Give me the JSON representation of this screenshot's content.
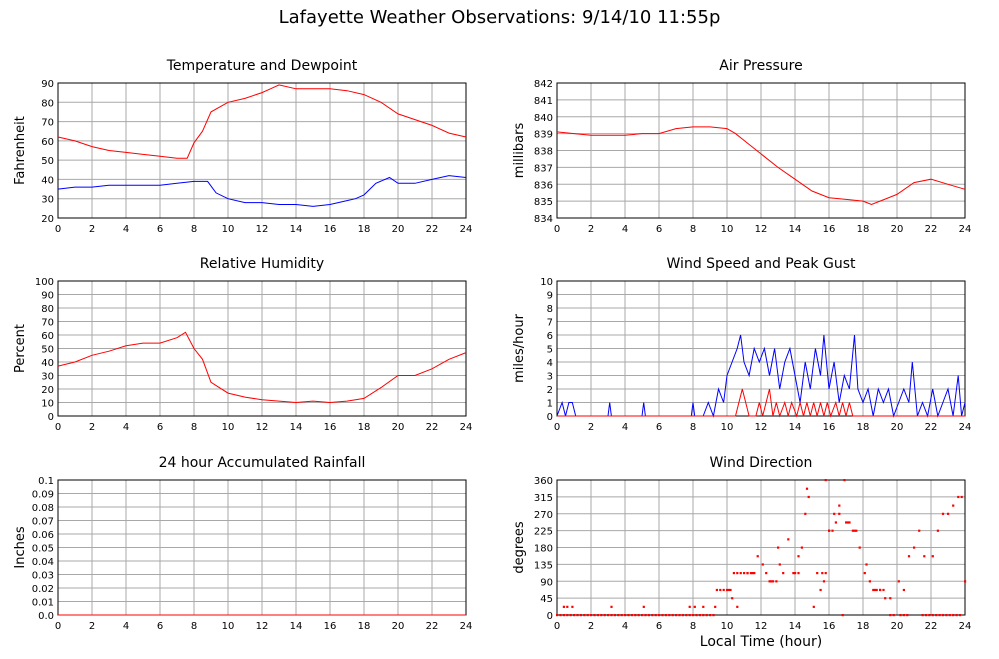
{
  "page": {
    "title": "Lafayette Weather Observations: 9/14/10 11:55p",
    "xlabel": "Local Time (hour)"
  },
  "chart_data": [
    {
      "type": "line",
      "title": "Temperature and Dewpoint",
      "ylabel": "Fahrenheit",
      "xlim": [
        0,
        24
      ],
      "ylim": [
        20,
        90
      ],
      "xticks": [
        0,
        2,
        4,
        6,
        8,
        10,
        12,
        14,
        16,
        18,
        20,
        22,
        24
      ],
      "yticks": [
        20,
        30,
        40,
        50,
        60,
        70,
        80,
        90
      ],
      "grid": true,
      "series": [
        {
          "color": "#ff0000",
          "x": [
            0,
            1,
            2,
            3,
            4,
            5,
            6,
            7,
            7.6,
            8,
            8.5,
            9,
            10,
            11,
            12,
            12.5,
            13,
            14,
            15,
            16,
            17,
            18,
            19,
            20,
            21,
            22,
            23,
            24
          ],
          "y": [
            62,
            60,
            57,
            55,
            54,
            53,
            52,
            51,
            51,
            59,
            65,
            75,
            80,
            82,
            85,
            87,
            89,
            87,
            87,
            87,
            86,
            84,
            80,
            74,
            71,
            68,
            64,
            62
          ]
        },
        {
          "color": "#0000ff",
          "x": [
            0,
            1,
            2,
            3,
            4,
            5,
            6,
            7,
            8,
            8.8,
            9.3,
            10,
            11,
            12,
            13,
            14,
            15,
            16,
            17,
            17.5,
            18,
            18.7,
            19.5,
            20,
            21,
            22,
            23,
            24
          ],
          "y": [
            35,
            36,
            36,
            37,
            37,
            37,
            37,
            38,
            39,
            39,
            33,
            30,
            28,
            28,
            27,
            27,
            26,
            27,
            29,
            30,
            32,
            38,
            41,
            38,
            38,
            40,
            42,
            41
          ]
        }
      ]
    },
    {
      "type": "line",
      "title": "Air Pressure",
      "ylabel": "millibars",
      "xlim": [
        0,
        24
      ],
      "ylim": [
        834,
        842
      ],
      "xticks": [
        0,
        2,
        4,
        6,
        8,
        10,
        12,
        14,
        16,
        18,
        20,
        22,
        24
      ],
      "yticks": [
        834,
        835,
        836,
        837,
        838,
        839,
        840,
        841,
        842
      ],
      "grid": true,
      "series": [
        {
          "color": "#ff0000",
          "x": [
            0,
            1,
            2,
            3,
            4,
            5,
            6,
            7,
            8,
            9,
            10,
            10.5,
            11,
            12,
            13,
            14,
            15,
            16,
            17,
            18,
            18.5,
            19,
            20,
            21,
            22,
            23,
            24
          ],
          "y": [
            839.1,
            839.0,
            838.9,
            838.9,
            838.9,
            839.0,
            839.0,
            839.3,
            839.4,
            839.4,
            839.3,
            839.0,
            838.6,
            837.8,
            837.0,
            836.3,
            835.6,
            835.2,
            835.1,
            835.0,
            834.8,
            835.0,
            835.4,
            836.1,
            836.3,
            836.0,
            835.7
          ]
        }
      ]
    },
    {
      "type": "line",
      "title": "Relative Humidity",
      "ylabel": "Percent",
      "xlim": [
        0,
        24
      ],
      "ylim": [
        0,
        100
      ],
      "xticks": [
        0,
        2,
        4,
        6,
        8,
        10,
        12,
        14,
        16,
        18,
        20,
        22,
        24
      ],
      "yticks": [
        0,
        10,
        20,
        30,
        40,
        50,
        60,
        70,
        80,
        90,
        100
      ],
      "grid": true,
      "series": [
        {
          "color": "#ff0000",
          "x": [
            0,
            1,
            2,
            3,
            4,
            5,
            6,
            7,
            7.5,
            8,
            8.5,
            9,
            10,
            11,
            12,
            13,
            14,
            15,
            16,
            17,
            18,
            19,
            20,
            21,
            22,
            23,
            24
          ],
          "y": [
            37,
            40,
            45,
            48,
            52,
            54,
            54,
            58,
            62,
            50,
            42,
            25,
            17,
            14,
            12,
            11,
            10,
            11,
            10,
            11,
            13,
            21,
            30,
            30,
            35,
            42,
            47
          ]
        }
      ]
    },
    {
      "type": "line",
      "title": "Wind Speed and Peak Gust",
      "ylabel": "miles/hour",
      "xlim": [
        0,
        24
      ],
      "ylim": [
        0,
        10
      ],
      "xticks": [
        0,
        2,
        4,
        6,
        8,
        10,
        12,
        14,
        16,
        18,
        20,
        22,
        24
      ],
      "yticks": [
        0,
        1,
        2,
        3,
        4,
        5,
        6,
        7,
        8,
        9,
        10
      ],
      "grid": true,
      "series": [
        {
          "color": "#0000ff",
          "x": [
            0,
            0.3,
            0.5,
            0.7,
            0.9,
            1.1,
            3.0,
            3.1,
            3.2,
            5.0,
            5.1,
            5.2,
            7.9,
            8.0,
            8.1,
            8.6,
            8.9,
            9.2,
            9.5,
            9.8,
            10.0,
            10.3,
            10.6,
            10.8,
            11.0,
            11.3,
            11.6,
            11.9,
            12.2,
            12.5,
            12.8,
            13.1,
            13.4,
            13.7,
            14.0,
            14.3,
            14.6,
            14.9,
            15.2,
            15.5,
            15.7,
            16.0,
            16.3,
            16.6,
            16.9,
            17.2,
            17.5,
            17.7,
            18.0,
            18.3,
            18.6,
            18.9,
            19.2,
            19.5,
            19.8,
            20.1,
            20.4,
            20.7,
            20.9,
            21.2,
            21.5,
            21.8,
            22.1,
            22.4,
            22.7,
            23.0,
            23.3,
            23.6,
            23.8,
            24
          ],
          "y": [
            0,
            1,
            0,
            1,
            1,
            0,
            0,
            1,
            0,
            0,
            1,
            0,
            0,
            1,
            0,
            0,
            1,
            0,
            2,
            1,
            3,
            4,
            5,
            6,
            4,
            3,
            5,
            4,
            5,
            3,
            5,
            2,
            4,
            5,
            3,
            1,
            4,
            2,
            5,
            3,
            6,
            2,
            4,
            1,
            3,
            2,
            6,
            2,
            1,
            2,
            0,
            2,
            1,
            2,
            0,
            1,
            2,
            1,
            4,
            0,
            1,
            0,
            2,
            0,
            1,
            2,
            0,
            3,
            0,
            1
          ]
        },
        {
          "color": "#ff0000",
          "x": [
            0,
            10.5,
            10.7,
            10.9,
            11.1,
            11.3,
            11.7,
            11.9,
            12.1,
            12.3,
            12.5,
            12.7,
            12.9,
            13.1,
            13.4,
            13.6,
            13.8,
            14.1,
            14.3,
            14.5,
            14.7,
            14.9,
            15.1,
            15.3,
            15.5,
            15.7,
            15.9,
            16.1,
            16.4,
            16.6,
            16.8,
            17.0,
            17.2,
            17.4,
            17.6,
            24
          ],
          "y": [
            0,
            0,
            1,
            2,
            1,
            0,
            0,
            1,
            0,
            1,
            2,
            0,
            1,
            0,
            1,
            0,
            1,
            0,
            1,
            0,
            1,
            0,
            1,
            0,
            1,
            0,
            1,
            0,
            1,
            0,
            1,
            0,
            1,
            0,
            0,
            0
          ]
        }
      ]
    },
    {
      "type": "line",
      "title": "24 hour Accumulated Rainfall",
      "ylabel": "Inches",
      "xlim": [
        0,
        24
      ],
      "ylim": [
        0,
        0.1
      ],
      "xticks": [
        0,
        2,
        4,
        6,
        8,
        10,
        12,
        14,
        16,
        18,
        20,
        22,
        24
      ],
      "yticks": [
        "0.0",
        "0.01",
        "0.02",
        "0.03",
        "0.04",
        "0.05",
        "0.06",
        "0.07",
        "0.08",
        "0.09",
        "0.1"
      ],
      "grid": true,
      "series": [
        {
          "color": "#ff0000",
          "x": [
            0,
            24
          ],
          "y": [
            0,
            0
          ]
        }
      ]
    },
    {
      "type": "scatter",
      "title": "Wind Direction",
      "ylabel": "degrees",
      "xlim": [
        0,
        24
      ],
      "ylim": [
        0,
        360
      ],
      "xticks": [
        0,
        2,
        4,
        6,
        8,
        10,
        12,
        14,
        16,
        18,
        20,
        22,
        24
      ],
      "yticks": [
        0,
        45,
        90,
        135,
        180,
        225,
        270,
        315,
        360
      ],
      "grid": true,
      "series": [
        {
          "color": "#ff0000",
          "x": [
            0.4,
            0.6,
            0.9,
            3.2,
            5.1,
            7.8,
            8.1,
            8.6,
            9.3,
            10.1,
            10.3,
            10.6,
            11.2,
            11.5,
            11.8,
            12.1,
            12.3,
            12.6,
            13.0,
            13.1,
            13.3,
            13.6,
            13.9,
            14.2,
            14.4,
            14.6,
            14.7,
            14.8,
            15.1,
            15.3,
            15.5,
            15.7,
            15.8,
            16.0,
            16.3,
            16.6,
            16.9,
            17.1,
            17.5,
            17.8,
            18.1,
            18.4,
            18.7,
            19.0,
            19.3,
            19.6,
            20.1,
            20.4,
            20.7,
            21.0,
            21.3,
            21.6,
            22.1,
            22.4,
            22.7,
            23.0,
            23.3,
            23.6,
            23.8,
            24.0
          ],
          "y": [
            22,
            22,
            22,
            22,
            22,
            22,
            22,
            22,
            22,
            67,
            45,
            22,
            112,
            112,
            157,
            135,
            112,
            90,
            180,
            135,
            112,
            202,
            112,
            157,
            180,
            270,
            337,
            315,
            22,
            112,
            67,
            90,
            360,
            225,
            270,
            292,
            360,
            247,
            225,
            180,
            112,
            90,
            67,
            67,
            45,
            45,
            90,
            67,
            157,
            180,
            225,
            157,
            157,
            225,
            270,
            270,
            292,
            315,
            315,
            90
          ]
        },
        {
          "color": "#ff0000",
          "x": [
            0,
            0.2,
            0.4,
            0.6,
            0.8,
            1.0,
            1.2,
            1.4,
            1.6,
            1.8,
            2.0,
            2.2,
            2.4,
            2.6,
            2.8,
            3.0,
            3.2,
            3.4,
            3.6,
            3.8,
            4.0,
            4.2,
            4.4,
            4.6,
            4.8,
            5.0,
            5.2,
            5.4,
            5.6,
            5.8,
            6.0,
            6.2,
            6.4,
            6.6,
            6.8,
            7.0,
            7.2,
            7.4,
            7.6,
            7.8,
            8.0,
            8.2,
            8.4,
            8.6,
            8.8,
            9.0,
            9.2
          ],
          "y": [
            0,
            0,
            0,
            0,
            0,
            0,
            0,
            0,
            0,
            0,
            0,
            0,
            0,
            0,
            0,
            0,
            0,
            0,
            0,
            0,
            0,
            0,
            0,
            0,
            0,
            0,
            0,
            0,
            0,
            0,
            0,
            0,
            0,
            0,
            0,
            0,
            0,
            0,
            0,
            0,
            0,
            0,
            0,
            0,
            0,
            0,
            0
          ]
        },
        {
          "color": "#ff0000",
          "x": [
            9.4,
            9.6,
            9.8,
            10.0,
            10.2,
            10.4,
            10.6,
            10.8,
            11.0,
            11.2,
            11.4,
            11.6,
            12.5,
            12.7,
            12.9,
            14.0,
            14.2,
            15.6,
            15.8,
            16.0,
            16.2,
            16.4,
            16.6,
            16.8,
            17.0,
            17.2,
            17.4,
            17.6,
            18.2,
            18.6,
            18.8,
            19.0,
            19.2,
            19.6,
            19.8,
            20.2,
            20.4,
            20.6,
            21.5,
            21.7,
            21.9,
            22.1,
            22.3,
            22.5,
            22.7,
            22.9,
            23.1,
            23.3,
            23.5,
            23.7
          ],
          "y": [
            67,
            67,
            67,
            67,
            67,
            112,
            112,
            112,
            112,
            112,
            112,
            112,
            90,
            90,
            90,
            112,
            112,
            112,
            112,
            225,
            225,
            247,
            270,
            0,
            247,
            247,
            225,
            225,
            135,
            67,
            67,
            67,
            67,
            0,
            0,
            0,
            0,
            0,
            0,
            0,
            0,
            0,
            0,
            0,
            0,
            0,
            0,
            0,
            0,
            0
          ]
        }
      ]
    }
  ]
}
